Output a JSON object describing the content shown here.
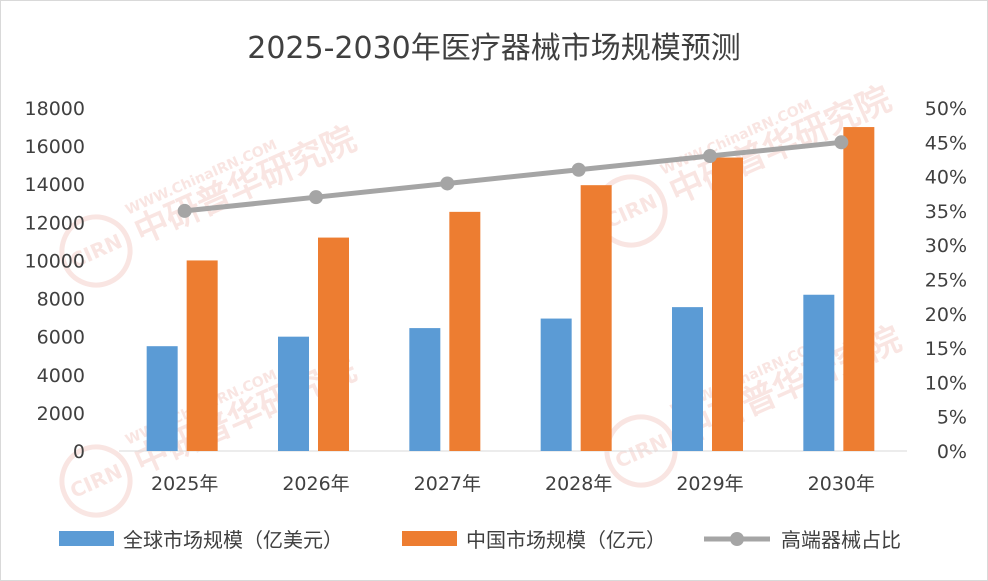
{
  "watermark": {
    "url_text": "WWW.ChinaIRN.COM",
    "cn_text": "中研普华研究院",
    "logo_text": "CIRN",
    "color": "#f2c7c0"
  },
  "chart_data": {
    "type": "bar",
    "title": "2025-2030年医疗器械市场规模预测",
    "categories": [
      "2025年",
      "2026年",
      "2027年",
      "2028年",
      "2029年",
      "2030年"
    ],
    "y_left": {
      "ylim": [
        0,
        18000
      ],
      "ticks": [
        "0",
        "2000",
        "4000",
        "6000",
        "8000",
        "10000",
        "12000",
        "14000",
        "16000",
        "18000"
      ]
    },
    "y_right": {
      "ylim": [
        0,
        0.5
      ],
      "ticks": [
        "0%",
        "5%",
        "10%",
        "15%",
        "20%",
        "25%",
        "30%",
        "35%",
        "40%",
        "45%",
        "50%"
      ]
    },
    "series": [
      {
        "name": "全球市场规模（亿美元）",
        "type": "bar",
        "axis": "left",
        "color": "#5b9bd5",
        "values": [
          5500,
          6000,
          6450,
          6950,
          7550,
          8200
        ]
      },
      {
        "name": "中国市场规模（亿元）",
        "type": "bar",
        "axis": "left",
        "color": "#ed7d31",
        "values": [
          10000,
          11200,
          12550,
          13950,
          15400,
          17000
        ]
      },
      {
        "name": "高端器械占比",
        "type": "line",
        "axis": "right",
        "color": "#a5a5a5",
        "values": [
          0.35,
          0.37,
          0.39,
          0.41,
          0.43,
          0.45
        ]
      }
    ],
    "grid": false,
    "legend_position": "bottom"
  }
}
